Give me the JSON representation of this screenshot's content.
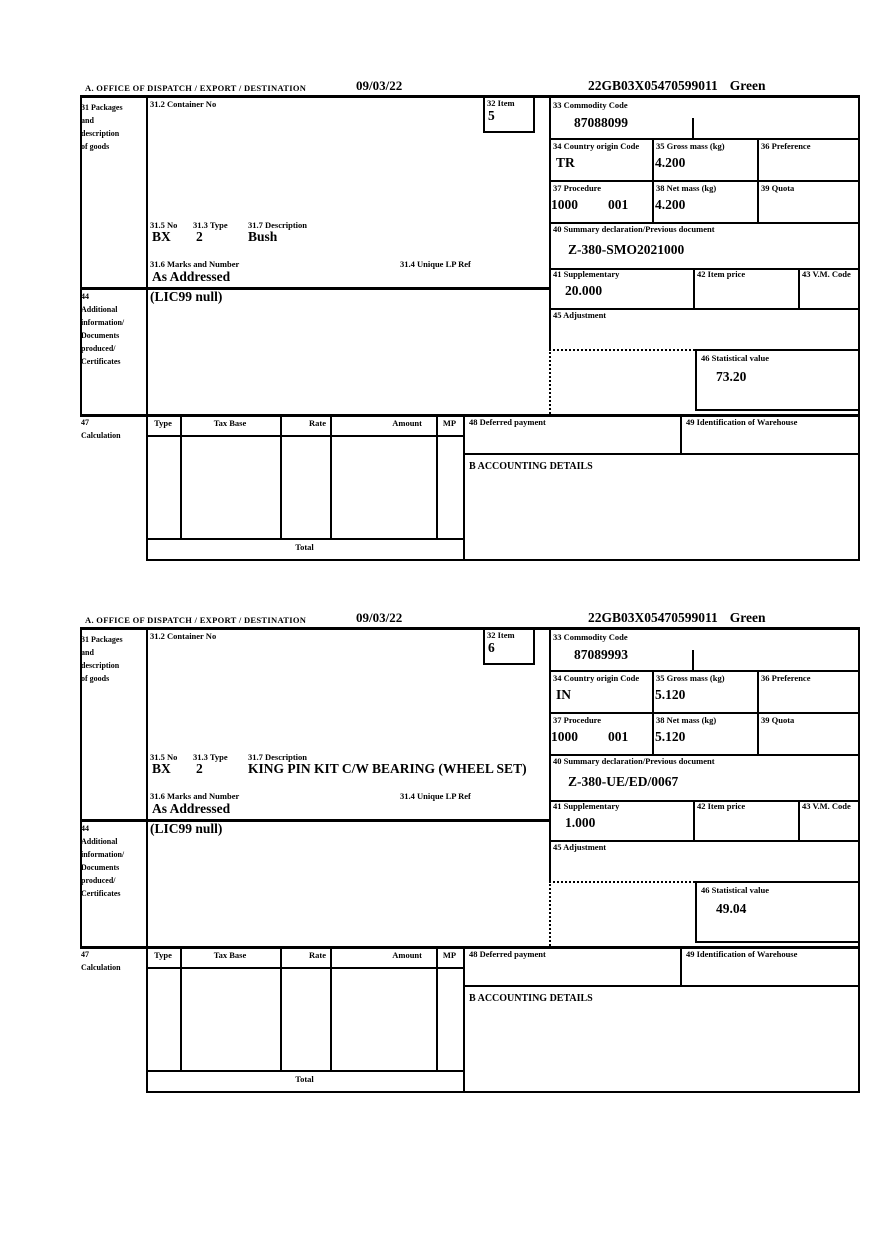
{
  "labels": {
    "office": "A.  OFFICE OF DISPATCH / EXPORT / DESTINATION",
    "box31_lines": [
      "31 Packages",
      "and",
      "description",
      "of goods"
    ],
    "container_no": "31.2 Container No",
    "item": "32 Item",
    "commodity_code": "33 Commodity Code",
    "country_origin": "34 Country origin Code",
    "gross_mass": "35 Gross mass (kg)",
    "preference": "36 Preference",
    "procedure": "37 Procedure",
    "net_mass": "38 Net mass (kg)",
    "quota": "39 Quota",
    "no_315": "31.5 No",
    "type_313": "31.3 Type",
    "desc_317": "31.7 Description",
    "summary_decl": "40 Summary declaration/Previous document",
    "marks_316": "31.6 Marks and Number",
    "lp_ref_314": "31.4 Unique LP Ref",
    "supplementary": "41 Supplementary",
    "item_price": "42 Item price",
    "vm_code": "43 V.M. Code",
    "box44_lines": [
      "44",
      "Additional",
      "information/",
      "Documents",
      "produced/",
      "Certificates"
    ],
    "adjustment": "45 Adjustment",
    "statistical": "46 Statistical value",
    "box47_lines": [
      "47",
      "Calculation"
    ],
    "calc_headers": [
      "Type",
      "Tax Base",
      "Rate",
      "Amount",
      "MP"
    ],
    "deferred": "48 Deferred payment",
    "warehouse": "49 Identification of Warehouse",
    "accounting": "B ACCOUNTING DETAILS",
    "total": "Total"
  },
  "items": [
    {
      "date": "09/03/22",
      "reference": "22GB03X05470599011",
      "status": "Green",
      "item_no": "5",
      "commodity_code": "87088099",
      "country_origin": "TR",
      "gross_mass": "4.200",
      "procedure_1": "1000",
      "procedure_2": "001",
      "net_mass": "4.200",
      "package_no": "BX",
      "package_type": "2",
      "description": "Bush",
      "previous_document": "Z-380-SMO2021000",
      "marks": "As Addressed",
      "supplementary": "20.000",
      "additional_info": "(LIC99 null)",
      "statistical_value": "73.20"
    },
    {
      "date": "09/03/22",
      "reference": "22GB03X05470599011",
      "status": "Green",
      "item_no": "6",
      "commodity_code": "87089993",
      "country_origin": "IN",
      "gross_mass": "5.120",
      "procedure_1": "1000",
      "procedure_2": "001",
      "net_mass": "5.120",
      "package_no": "BX",
      "package_type": "2",
      "description": "KING PIN KIT C/W BEARING (WHEEL SET)",
      "previous_document": "Z-380-UE/ED/0067",
      "marks": "As Addressed",
      "supplementary": "1.000",
      "additional_info": "(LIC99 null)",
      "statistical_value": "49.04"
    }
  ]
}
